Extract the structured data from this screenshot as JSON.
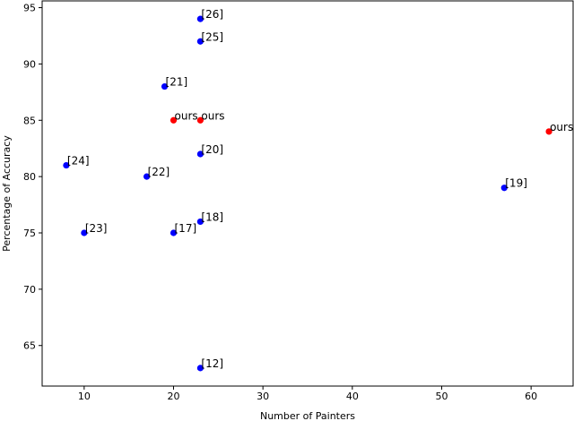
{
  "chart_data": {
    "type": "scatter",
    "title": "",
    "xlabel": "Number of Painters",
    "ylabel": "Percentage of Accuracy",
    "xlim": [
      5.3,
      64.7
    ],
    "ylim": [
      61.4,
      95.6
    ],
    "xticks": [
      10,
      20,
      30,
      40,
      50,
      60
    ],
    "yticks": [
      65,
      70,
      75,
      80,
      85,
      90,
      95
    ],
    "grid": false,
    "colors": {
      "reference": "#0000ff",
      "ours": "#ff0000"
    },
    "series": [
      {
        "color": "#0000ff",
        "points": [
          {
            "x": 23,
            "y": 94,
            "label": "[26]"
          },
          {
            "x": 23,
            "y": 92,
            "label": "[25]"
          },
          {
            "x": 19,
            "y": 88,
            "label": "[21]"
          },
          {
            "x": 23,
            "y": 82,
            "label": "[20]"
          },
          {
            "x": 8,
            "y": 81,
            "label": "[24]"
          },
          {
            "x": 17,
            "y": 80,
            "label": "[22]"
          },
          {
            "x": 57,
            "y": 79,
            "label": "[19]"
          },
          {
            "x": 23,
            "y": 76,
            "label": "[18]"
          },
          {
            "x": 10,
            "y": 75,
            "label": "[23]"
          },
          {
            "x": 20,
            "y": 75,
            "label": "[17]"
          },
          {
            "x": 23,
            "y": 63,
            "label": "[12]"
          }
        ]
      },
      {
        "color": "#ff0000",
        "points": [
          {
            "x": 20,
            "y": 85,
            "label": "ours"
          },
          {
            "x": 23,
            "y": 85,
            "label": "ours"
          },
          {
            "x": 62,
            "y": 84,
            "label": "ours"
          }
        ]
      }
    ]
  }
}
